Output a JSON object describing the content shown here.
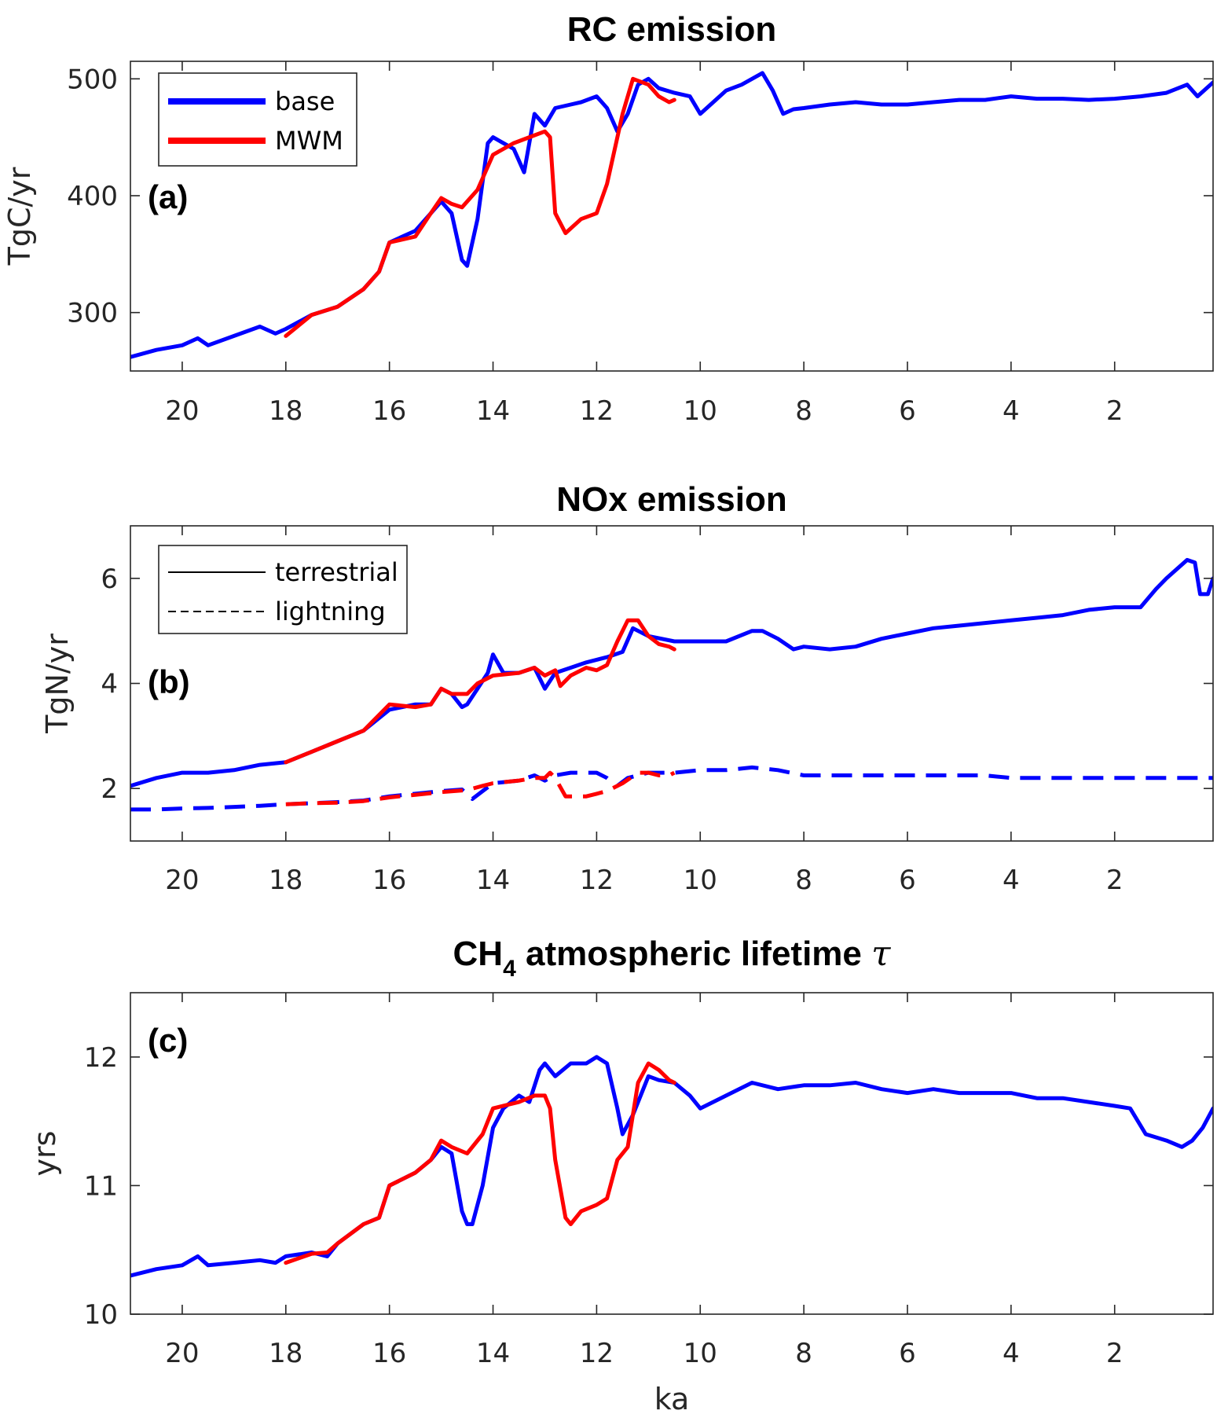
{
  "chart_data": [
    {
      "type": "line",
      "title": "RC emission",
      "ylabel": "TgC/yr",
      "xlabel": "",
      "panel_label": "(a)",
      "xlim": [
        21,
        0.1
      ],
      "ylim": [
        250,
        515
      ],
      "xticks": [
        20,
        18,
        16,
        14,
        12,
        10,
        8,
        6,
        4,
        2
      ],
      "yticks": [
        300,
        400,
        500
      ],
      "legend": {
        "position": "top-left",
        "entries": [
          {
            "label": "base",
            "color": "#0000ff",
            "style": "solid"
          },
          {
            "label": "MWM",
            "color": "#ff0000",
            "style": "solid"
          }
        ]
      },
      "series": [
        {
          "name": "base",
          "color": "#0000ff",
          "style": "solid",
          "x": [
            21,
            20.5,
            20,
            19.7,
            19.5,
            19,
            18.5,
            18.2,
            18,
            17.5,
            17,
            16.5,
            16.2,
            16,
            15.5,
            15.2,
            15,
            14.8,
            14.6,
            14.5,
            14.3,
            14.1,
            14,
            13.8,
            13.6,
            13.4,
            13.2,
            13,
            12.8,
            12.5,
            12.3,
            12,
            11.8,
            11.6,
            11.4,
            11.2,
            11,
            10.8,
            10.5,
            10.2,
            10,
            9.7,
            9.5,
            9.2,
            9,
            8.8,
            8.6,
            8.4,
            8.2,
            8,
            7.5,
            7,
            6.5,
            6,
            5.5,
            5,
            4.5,
            4,
            3.5,
            3,
            2.5,
            2,
            1.5,
            1,
            0.6,
            0.4,
            0.1
          ],
          "y": [
            262,
            268,
            272,
            278,
            272,
            280,
            288,
            282,
            286,
            298,
            305,
            320,
            335,
            360,
            370,
            385,
            395,
            385,
            345,
            340,
            380,
            445,
            450,
            445,
            440,
            420,
            470,
            460,
            475,
            478,
            480,
            485,
            475,
            455,
            470,
            495,
            500,
            492,
            488,
            485,
            470,
            482,
            490,
            495,
            500,
            505,
            490,
            470,
            474,
            475,
            478,
            480,
            478,
            478,
            480,
            482,
            482,
            485,
            483,
            483,
            482,
            483,
            485,
            488,
            495,
            485,
            497
          ]
        },
        {
          "name": "MWM",
          "color": "#ff0000",
          "style": "solid",
          "x": [
            18,
            17.5,
            17,
            16.5,
            16.2,
            16,
            15.5,
            15.2,
            15,
            14.8,
            14.6,
            14.3,
            14,
            13.6,
            13.3,
            13,
            12.9,
            12.8,
            12.6,
            12.3,
            12,
            11.8,
            11.5,
            11.3,
            11,
            10.8,
            10.6,
            10.5
          ],
          "y": [
            280,
            298,
            305,
            320,
            335,
            360,
            365,
            385,
            398,
            393,
            390,
            405,
            435,
            445,
            450,
            455,
            450,
            385,
            368,
            380,
            385,
            410,
            470,
            500,
            495,
            485,
            480,
            482
          ]
        }
      ]
    },
    {
      "type": "line",
      "title": "NOx emission",
      "ylabel": "TgN/yr",
      "xlabel": "",
      "panel_label": "(b)",
      "xlim": [
        21,
        0.1
      ],
      "ylim": [
        1,
        7
      ],
      "xticks": [
        20,
        18,
        16,
        14,
        12,
        10,
        8,
        6,
        4,
        2
      ],
      "yticks": [
        2,
        4,
        6
      ],
      "legend": {
        "position": "top-left",
        "entries": [
          {
            "label": "terrestrial",
            "color": "#000000",
            "style": "solid"
          },
          {
            "label": "lightning",
            "color": "#000000",
            "style": "dashed"
          }
        ]
      },
      "series": [
        {
          "name": "base terrestrial",
          "color": "#0000ff",
          "style": "solid",
          "x": [
            21,
            20.5,
            20,
            19.5,
            19,
            18.5,
            18,
            17.5,
            17,
            16.5,
            16,
            15.5,
            15.2,
            15,
            14.8,
            14.6,
            14.5,
            14.3,
            14.1,
            14,
            13.8,
            13.5,
            13.2,
            13,
            12.8,
            12.5,
            12.2,
            12,
            11.8,
            11.5,
            11.3,
            11,
            10.5,
            10,
            9.5,
            9,
            8.8,
            8.5,
            8.2,
            8,
            7.5,
            7,
            6.5,
            6,
            5.5,
            5,
            4.5,
            4,
            3.5,
            3,
            2.5,
            2,
            1.5,
            1.2,
            1,
            0.6,
            0.45,
            0.35,
            0.2,
            0.1
          ],
          "y": [
            2.05,
            2.2,
            2.3,
            2.3,
            2.35,
            2.45,
            2.5,
            2.7,
            2.9,
            3.1,
            3.5,
            3.6,
            3.6,
            3.9,
            3.8,
            3.55,
            3.6,
            3.9,
            4.2,
            4.55,
            4.2,
            4.2,
            4.3,
            3.9,
            4.2,
            4.3,
            4.4,
            4.45,
            4.5,
            4.6,
            5.05,
            4.9,
            4.8,
            4.8,
            4.8,
            5.0,
            5.0,
            4.85,
            4.65,
            4.7,
            4.65,
            4.7,
            4.85,
            4.95,
            5.05,
            5.1,
            5.15,
            5.2,
            5.25,
            5.3,
            5.4,
            5.45,
            5.45,
            5.8,
            6.0,
            6.35,
            6.3,
            5.7,
            5.7,
            6.0
          ]
        },
        {
          "name": "MWM terrestrial",
          "color": "#ff0000",
          "style": "solid",
          "x": [
            18,
            17.5,
            17,
            16.5,
            16,
            15.5,
            15.2,
            15,
            14.8,
            14.5,
            14.3,
            14,
            13.5,
            13.2,
            13,
            12.8,
            12.7,
            12.5,
            12.2,
            12,
            11.8,
            11.6,
            11.4,
            11.2,
            11,
            10.8,
            10.6,
            10.5
          ],
          "y": [
            2.5,
            2.7,
            2.9,
            3.1,
            3.6,
            3.55,
            3.6,
            3.9,
            3.8,
            3.8,
            4.0,
            4.15,
            4.2,
            4.3,
            4.15,
            4.25,
            3.95,
            4.15,
            4.3,
            4.25,
            4.35,
            4.8,
            5.2,
            5.2,
            4.9,
            4.75,
            4.7,
            4.65
          ]
        },
        {
          "name": "base lightning",
          "color": "#0000ff",
          "style": "dashed",
          "x": [
            21,
            20.5,
            20,
            19.5,
            19,
            18.5,
            18,
            17.5,
            17,
            16.5,
            16,
            15.5,
            15,
            14.6,
            14.4,
            14.2,
            14,
            13.5,
            13.2,
            13,
            12.8,
            12.5,
            12,
            11.8,
            11.6,
            11.4,
            11,
            10.5,
            10,
            9.5,
            9,
            8.5,
            8,
            7.5,
            7,
            6.5,
            6,
            5.5,
            5,
            4.5,
            4,
            3.5,
            3,
            2.5,
            2,
            1.5,
            1,
            0.5,
            0.1
          ],
          "y": [
            1.6,
            1.6,
            1.62,
            1.63,
            1.65,
            1.67,
            1.7,
            1.72,
            1.74,
            1.77,
            1.85,
            1.9,
            1.95,
            1.98,
            1.8,
            1.95,
            2.1,
            2.15,
            2.25,
            2.15,
            2.25,
            2.3,
            2.3,
            2.2,
            2.05,
            2.2,
            2.3,
            2.3,
            2.35,
            2.35,
            2.4,
            2.35,
            2.25,
            2.25,
            2.25,
            2.25,
            2.25,
            2.25,
            2.25,
            2.25,
            2.2,
            2.2,
            2.2,
            2.2,
            2.2,
            2.2,
            2.2,
            2.2,
            2.2
          ]
        },
        {
          "name": "MWM lightning",
          "color": "#ff0000",
          "style": "dashed",
          "x": [
            18,
            17.5,
            17,
            16.5,
            16,
            15.5,
            15,
            14.5,
            14.2,
            14,
            13.5,
            13.2,
            13,
            12.9,
            12.8,
            12.6,
            12.4,
            12.2,
            12,
            11.8,
            11.5,
            11.2,
            11,
            10.8,
            10.6,
            10.5
          ],
          "y": [
            1.7,
            1.72,
            1.73,
            1.76,
            1.83,
            1.88,
            1.93,
            1.97,
            2.05,
            2.1,
            2.15,
            2.2,
            2.2,
            2.3,
            2.2,
            1.85,
            1.85,
            1.85,
            1.9,
            1.95,
            2.1,
            2.3,
            2.3,
            2.25,
            2.25,
            2.3
          ]
        }
      ]
    },
    {
      "type": "line",
      "title": "CH",
      "title_sub": "4",
      "title_rest": " atmospheric lifetime ",
      "title_symbol": "τ",
      "ylabel": "yrs",
      "xlabel": "ka",
      "panel_label": "(c)",
      "xlim": [
        21,
        0.1
      ],
      "ylim": [
        10,
        12.5
      ],
      "xticks": [
        20,
        18,
        16,
        14,
        12,
        10,
        8,
        6,
        4,
        2
      ],
      "yticks": [
        10,
        11,
        12
      ],
      "series": [
        {
          "name": "base",
          "color": "#0000ff",
          "style": "solid",
          "x": [
            21,
            20.5,
            20,
            19.7,
            19.5,
            19,
            18.5,
            18.2,
            18,
            17.5,
            17.2,
            17,
            16.5,
            16.2,
            16,
            15.5,
            15.2,
            15,
            14.8,
            14.6,
            14.5,
            14.4,
            14.2,
            14,
            13.8,
            13.5,
            13.3,
            13.1,
            13,
            12.8,
            12.5,
            12.2,
            12,
            11.8,
            11.6,
            11.5,
            11.3,
            11,
            10.8,
            10.5,
            10.2,
            10,
            9.5,
            9,
            8.5,
            8,
            7.5,
            7,
            6.5,
            6,
            5.5,
            5,
            4.5,
            4,
            3.5,
            3,
            2.5,
            2,
            1.7,
            1.4,
            1,
            0.7,
            0.5,
            0.3,
            0.1
          ],
          "y": [
            10.3,
            10.35,
            10.38,
            10.45,
            10.38,
            10.4,
            10.42,
            10.4,
            10.45,
            10.48,
            10.45,
            10.55,
            10.7,
            10.75,
            11.0,
            11.1,
            11.2,
            11.3,
            11.25,
            10.8,
            10.7,
            10.7,
            11.0,
            11.45,
            11.6,
            11.7,
            11.65,
            11.9,
            11.95,
            11.85,
            11.95,
            11.95,
            12.0,
            11.95,
            11.6,
            11.4,
            11.55,
            11.85,
            11.82,
            11.8,
            11.7,
            11.6,
            11.7,
            11.8,
            11.75,
            11.78,
            11.78,
            11.8,
            11.75,
            11.72,
            11.75,
            11.72,
            11.72,
            11.72,
            11.68,
            11.68,
            11.65,
            11.62,
            11.6,
            11.4,
            11.35,
            11.3,
            11.35,
            11.45,
            11.6
          ]
        },
        {
          "name": "MWM",
          "color": "#ff0000",
          "style": "solid",
          "x": [
            18,
            17.5,
            17.2,
            17,
            16.5,
            16.2,
            16,
            15.5,
            15.2,
            15,
            14.8,
            14.5,
            14.2,
            14,
            13.5,
            13.2,
            13,
            12.9,
            12.8,
            12.6,
            12.5,
            12.3,
            12,
            11.8,
            11.6,
            11.4,
            11.2,
            11,
            10.8,
            10.6,
            10.5
          ],
          "y": [
            10.4,
            10.47,
            10.48,
            10.55,
            10.7,
            10.75,
            11.0,
            11.1,
            11.2,
            11.35,
            11.3,
            11.25,
            11.4,
            11.6,
            11.65,
            11.7,
            11.7,
            11.6,
            11.2,
            10.75,
            10.7,
            10.8,
            10.85,
            10.9,
            11.2,
            11.3,
            11.8,
            11.95,
            11.9,
            11.82,
            11.8
          ]
        }
      ]
    }
  ]
}
